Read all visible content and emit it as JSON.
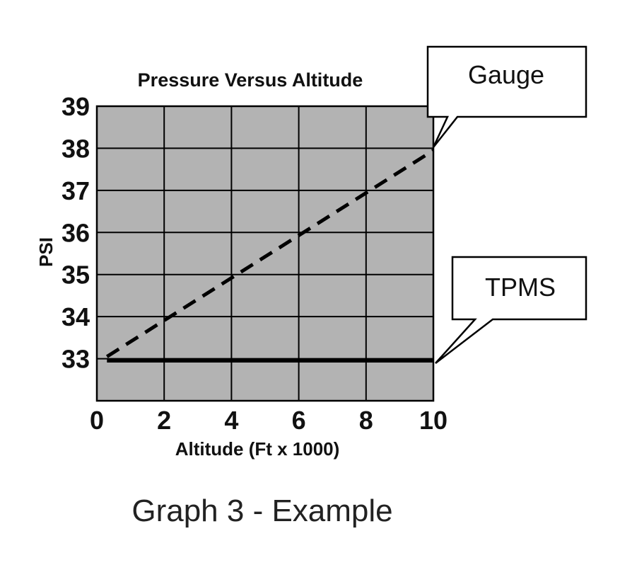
{
  "chart_data": {
    "type": "line",
    "title": "Pressure Versus Altitude",
    "xlabel": "Altitude (Ft x 1000)",
    "ylabel": "PSI",
    "xlim": [
      0,
      10
    ],
    "ylim": [
      32,
      39
    ],
    "x_ticks": [
      "0",
      "2",
      "4",
      "6",
      "8",
      "10"
    ],
    "y_ticks": [
      "33",
      "34",
      "35",
      "36",
      "37",
      "38",
      "39"
    ],
    "grid": true,
    "plot_background": "#b3b3b3",
    "series": [
      {
        "name": "Gauge",
        "style": "dashed",
        "color": "#000000",
        "x": [
          0.3,
          10
        ],
        "y": [
          33.05,
          37.95
        ]
      },
      {
        "name": "TPMS",
        "style": "solid",
        "color": "#000000",
        "x": [
          0.3,
          10
        ],
        "y": [
          32.95,
          32.95
        ]
      }
    ],
    "caption": "Graph 3 - Example"
  }
}
